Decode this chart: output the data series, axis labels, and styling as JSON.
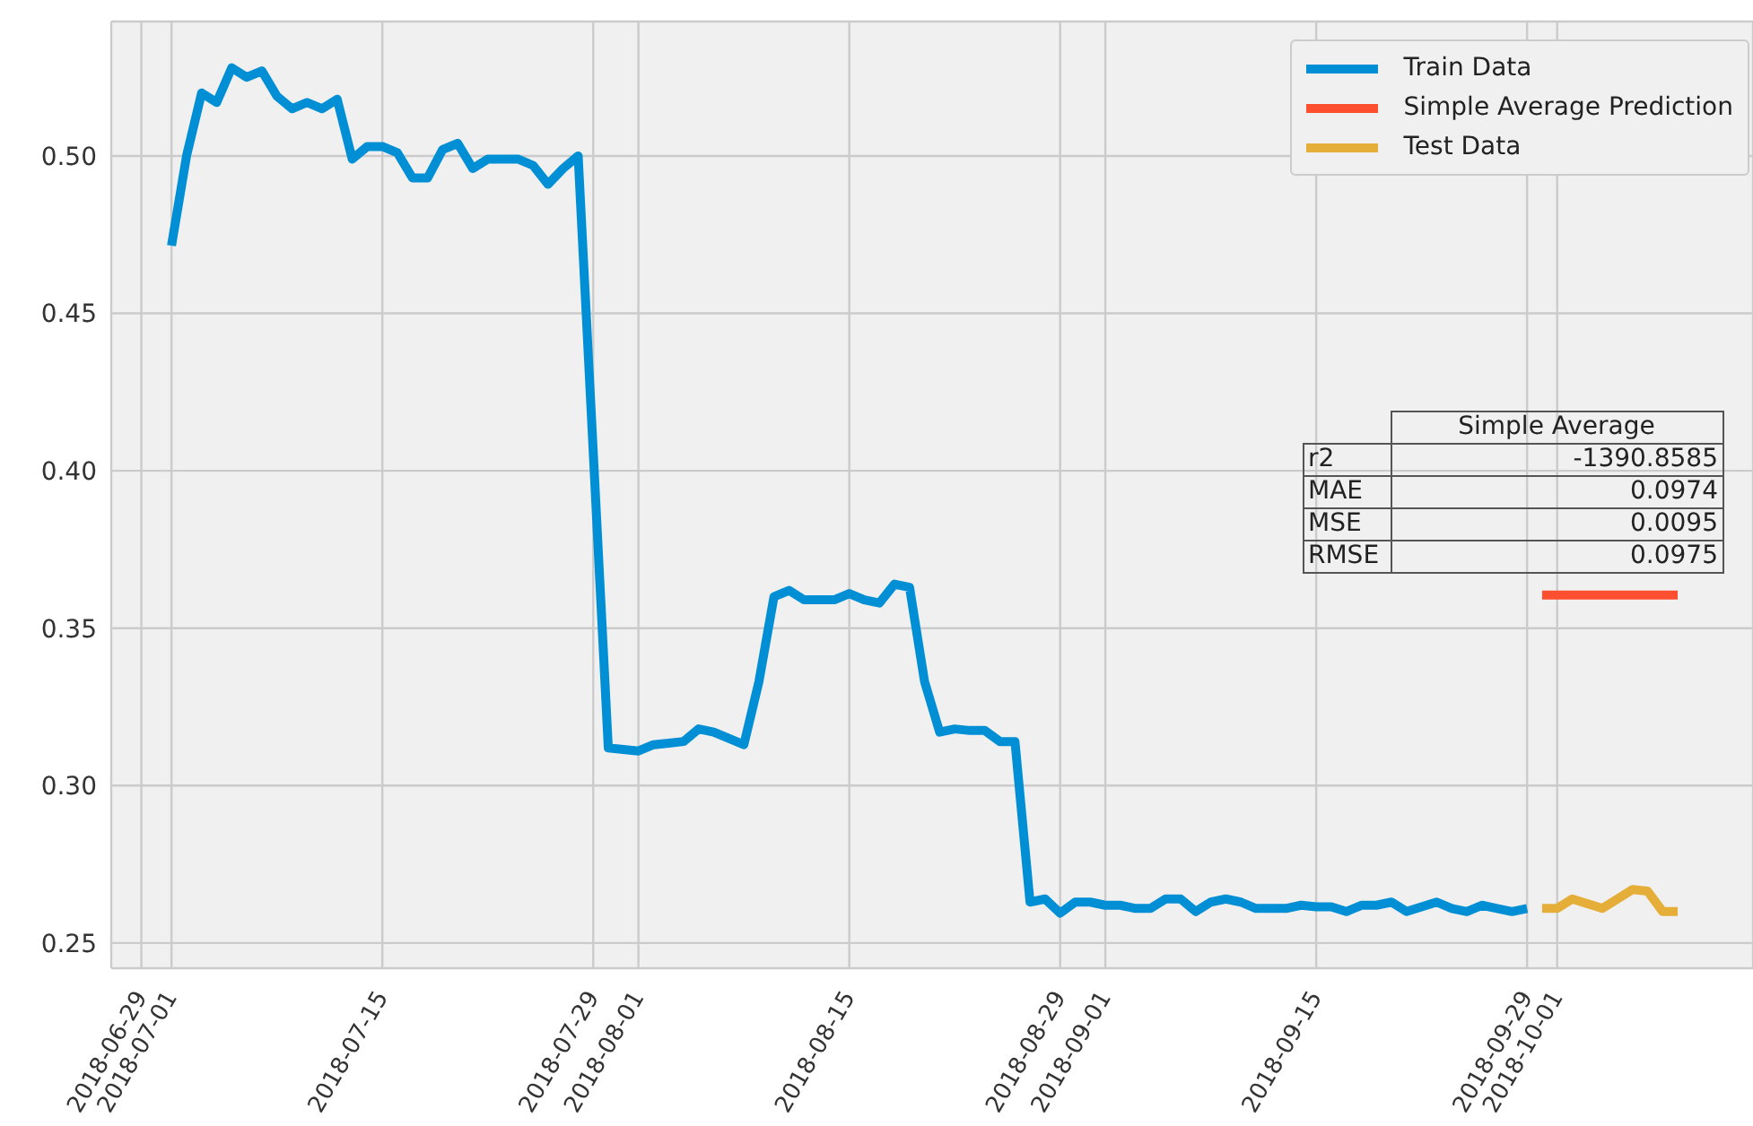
{
  "chart_data": {
    "type": "line",
    "xlim": [
      "2018-06-27",
      "2018-10-14"
    ],
    "ylim": [
      0.242,
      0.5427
    ],
    "xticks": [
      "2018-06-29",
      "2018-07-01",
      "2018-07-15",
      "2018-07-29",
      "2018-08-01",
      "2018-08-15",
      "2018-08-29",
      "2018-09-01",
      "2018-09-15",
      "2018-09-29",
      "2018-10-01"
    ],
    "yticks": [
      0.25,
      {
        "value": 0.3,
        "label": "0.30"
      },
      0.35,
      {
        "value": 0.4,
        "label": "0.40"
      },
      0.45,
      {
        "value": 0.5,
        "label": "0.50"
      }
    ],
    "grid": true,
    "legend": "top right",
    "marker": "none",
    "line_style": "solid",
    "annotations": [
      "Simple Average",
      "r2",
      "-1390.8585",
      "MAE",
      "0.0974",
      "MSE",
      "0.0095",
      "RMSE",
      "0.0975"
    ],
    "series": [
      {
        "name": "Train Data",
        "color": "#008fd5",
        "x": [
          "2018-07-01",
          "2018-07-02",
          "2018-07-03",
          "2018-07-04",
          "2018-07-05",
          "2018-07-06",
          "2018-07-07",
          "2018-07-08",
          "2018-07-09",
          "2018-07-10",
          "2018-07-11",
          "2018-07-12",
          "2018-07-13",
          "2018-07-14",
          "2018-07-15",
          "2018-07-16",
          "2018-07-17",
          "2018-07-18",
          "2018-07-19",
          "2018-07-20",
          "2018-07-21",
          "2018-07-22",
          "2018-07-23",
          "2018-07-24",
          "2018-07-25",
          "2018-07-26",
          "2018-07-27",
          "2018-07-28",
          "2018-07-30",
          "2018-07-31",
          "2018-08-01",
          "2018-08-02",
          "2018-08-03",
          "2018-08-04",
          "2018-08-05",
          "2018-08-06",
          "2018-08-07",
          "2018-08-08",
          "2018-08-09",
          "2018-08-10",
          "2018-08-11",
          "2018-08-12",
          "2018-08-13",
          "2018-08-14",
          "2018-08-15",
          "2018-08-16",
          "2018-08-17",
          "2018-08-18",
          "2018-08-19",
          "2018-08-20",
          "2018-08-21",
          "2018-08-22",
          "2018-08-23",
          "2018-08-24",
          "2018-08-25",
          "2018-08-26",
          "2018-08-27",
          "2018-08-28",
          "2018-08-29",
          "2018-08-30",
          "2018-08-31",
          "2018-09-01",
          "2018-09-02",
          "2018-09-03",
          "2018-09-04",
          "2018-09-05",
          "2018-09-06",
          "2018-09-07",
          "2018-09-08",
          "2018-09-09",
          "2018-09-10",
          "2018-09-11",
          "2018-09-12",
          "2018-09-13",
          "2018-09-14",
          "2018-09-15",
          "2018-09-16",
          "2018-09-17",
          "2018-09-18",
          "2018-09-19",
          "2018-09-20",
          "2018-09-21",
          "2018-09-22",
          "2018-09-23",
          "2018-09-24",
          "2018-09-25",
          "2018-09-26",
          "2018-09-27",
          "2018-09-28",
          "2018-09-29"
        ],
        "values": [
          0.4715,
          0.5,
          0.52,
          0.517,
          0.528,
          0.525,
          0.527,
          0.519,
          0.515,
          0.517,
          0.515,
          0.518,
          0.499,
          0.503,
          0.503,
          0.501,
          0.493,
          0.493,
          0.502,
          0.504,
          0.496,
          0.499,
          0.499,
          0.499,
          0.497,
          0.491,
          0.496,
          0.5,
          0.312,
          0.3115,
          0.311,
          0.313,
          0.3135,
          0.314,
          0.318,
          0.317,
          0.315,
          0.313,
          0.333,
          0.36,
          0.362,
          0.359,
          0.359,
          0.359,
          0.361,
          0.359,
          0.358,
          0.364,
          0.363,
          0.333,
          0.317,
          0.318,
          0.3175,
          0.3175,
          0.314,
          0.314,
          0.263,
          0.264,
          0.2595,
          0.263,
          0.263,
          0.262,
          0.262,
          0.261,
          0.261,
          0.264,
          0.264,
          0.26,
          0.263,
          0.264,
          0.263,
          0.261,
          0.261,
          0.261,
          0.262,
          0.2615,
          0.2615,
          0.26,
          0.262,
          0.262,
          0.263,
          0.26,
          0.2615,
          0.263,
          0.261,
          0.26,
          0.262,
          0.261,
          0.26,
          0.261
        ]
      },
      {
        "name": "Simple Average Prediction",
        "color": "#fc4f30",
        "x": [
          "2018-09-30",
          "2018-10-09"
        ],
        "values": [
          0.3605,
          0.3605
        ]
      },
      {
        "name": "Test Data",
        "color": "#e5ae38",
        "x": [
          "2018-09-30",
          "2018-10-01",
          "2018-10-02",
          "2018-10-03",
          "2018-10-04",
          "2018-10-05",
          "2018-10-06",
          "2018-10-07",
          "2018-10-08",
          "2018-10-09"
        ],
        "values": [
          0.261,
          0.261,
          0.264,
          0.2625,
          0.261,
          0.264,
          0.267,
          0.2665,
          0.26,
          0.26
        ]
      }
    ]
  }
}
